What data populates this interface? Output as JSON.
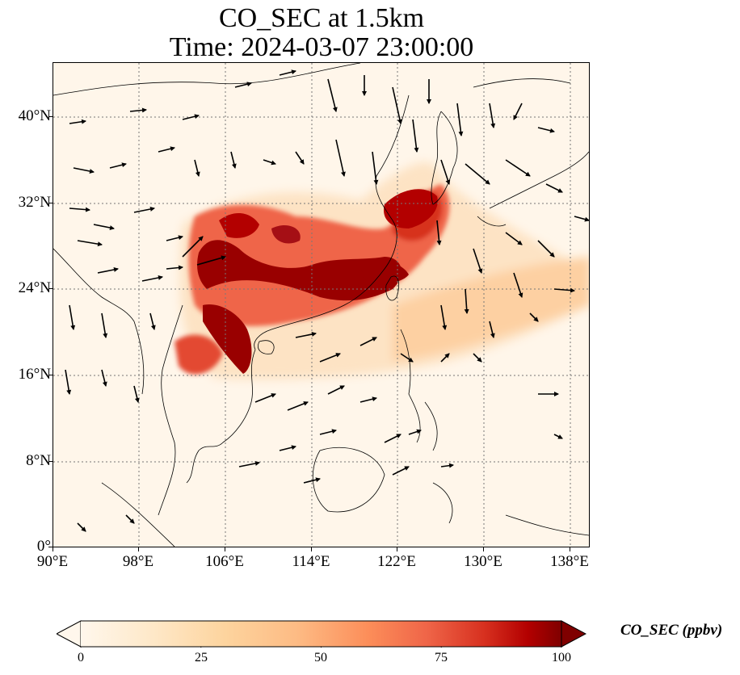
{
  "title": {
    "line1": "CO_SEC at 1.5km",
    "line2": "Time: 2024-03-07 23:00:00"
  },
  "axes": {
    "lat_ticks": [
      "40°N",
      "32°N",
      "24°N",
      "16°N",
      "8°N",
      "0°"
    ],
    "lon_ticks": [
      "90°E",
      "98°E",
      "106°E",
      "114°E",
      "122°E",
      "130°E",
      "138°E"
    ],
    "lon_range": [
      90,
      140
    ],
    "lat_range": [
      0,
      45
    ],
    "gridlines": "dotted"
  },
  "colorbar": {
    "label": "CO_SEC (ppbv)",
    "ticks": [
      "0",
      "25",
      "50",
      "75",
      "100"
    ],
    "range": [
      0,
      100
    ],
    "extend": "both",
    "colormap": "OrRd"
  },
  "colors": {
    "low": "#fff7ec",
    "mid": "#fc8d59",
    "high": "#7f0000"
  }
}
